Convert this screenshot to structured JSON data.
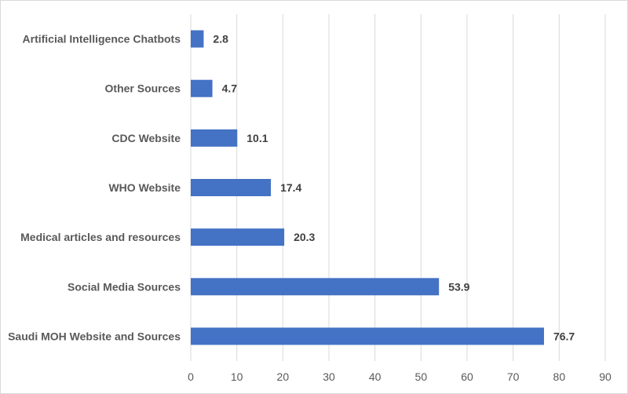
{
  "chart_data": {
    "type": "bar",
    "orientation": "horizontal",
    "title": "",
    "xlabel": "",
    "ylabel": "",
    "categories": [
      "Saudi MOH Website and Sources",
      "Social Media Sources",
      "Medical articles and resources",
      "WHO Website",
      "CDC Website",
      "Other Sources",
      "Artificial Intelligence Chatbots"
    ],
    "values": [
      76.7,
      53.9,
      20.3,
      17.4,
      10.1,
      4.7,
      2.8
    ],
    "value_labels": [
      "76.7",
      "53.9",
      "20.3",
      "17.4",
      "10.1",
      "4.7",
      "2.8"
    ],
    "xlim": [
      0,
      90
    ],
    "xticks": [
      0,
      10,
      20,
      30,
      40,
      50,
      60,
      70,
      80,
      90
    ],
    "xtick_labels": [
      "0",
      "10",
      "20",
      "30",
      "40",
      "50",
      "60",
      "70",
      "80",
      "90"
    ],
    "grid": "vertical",
    "legend": "none",
    "bar_color": "#4472c4",
    "grid_color": "#d9d9d9"
  }
}
